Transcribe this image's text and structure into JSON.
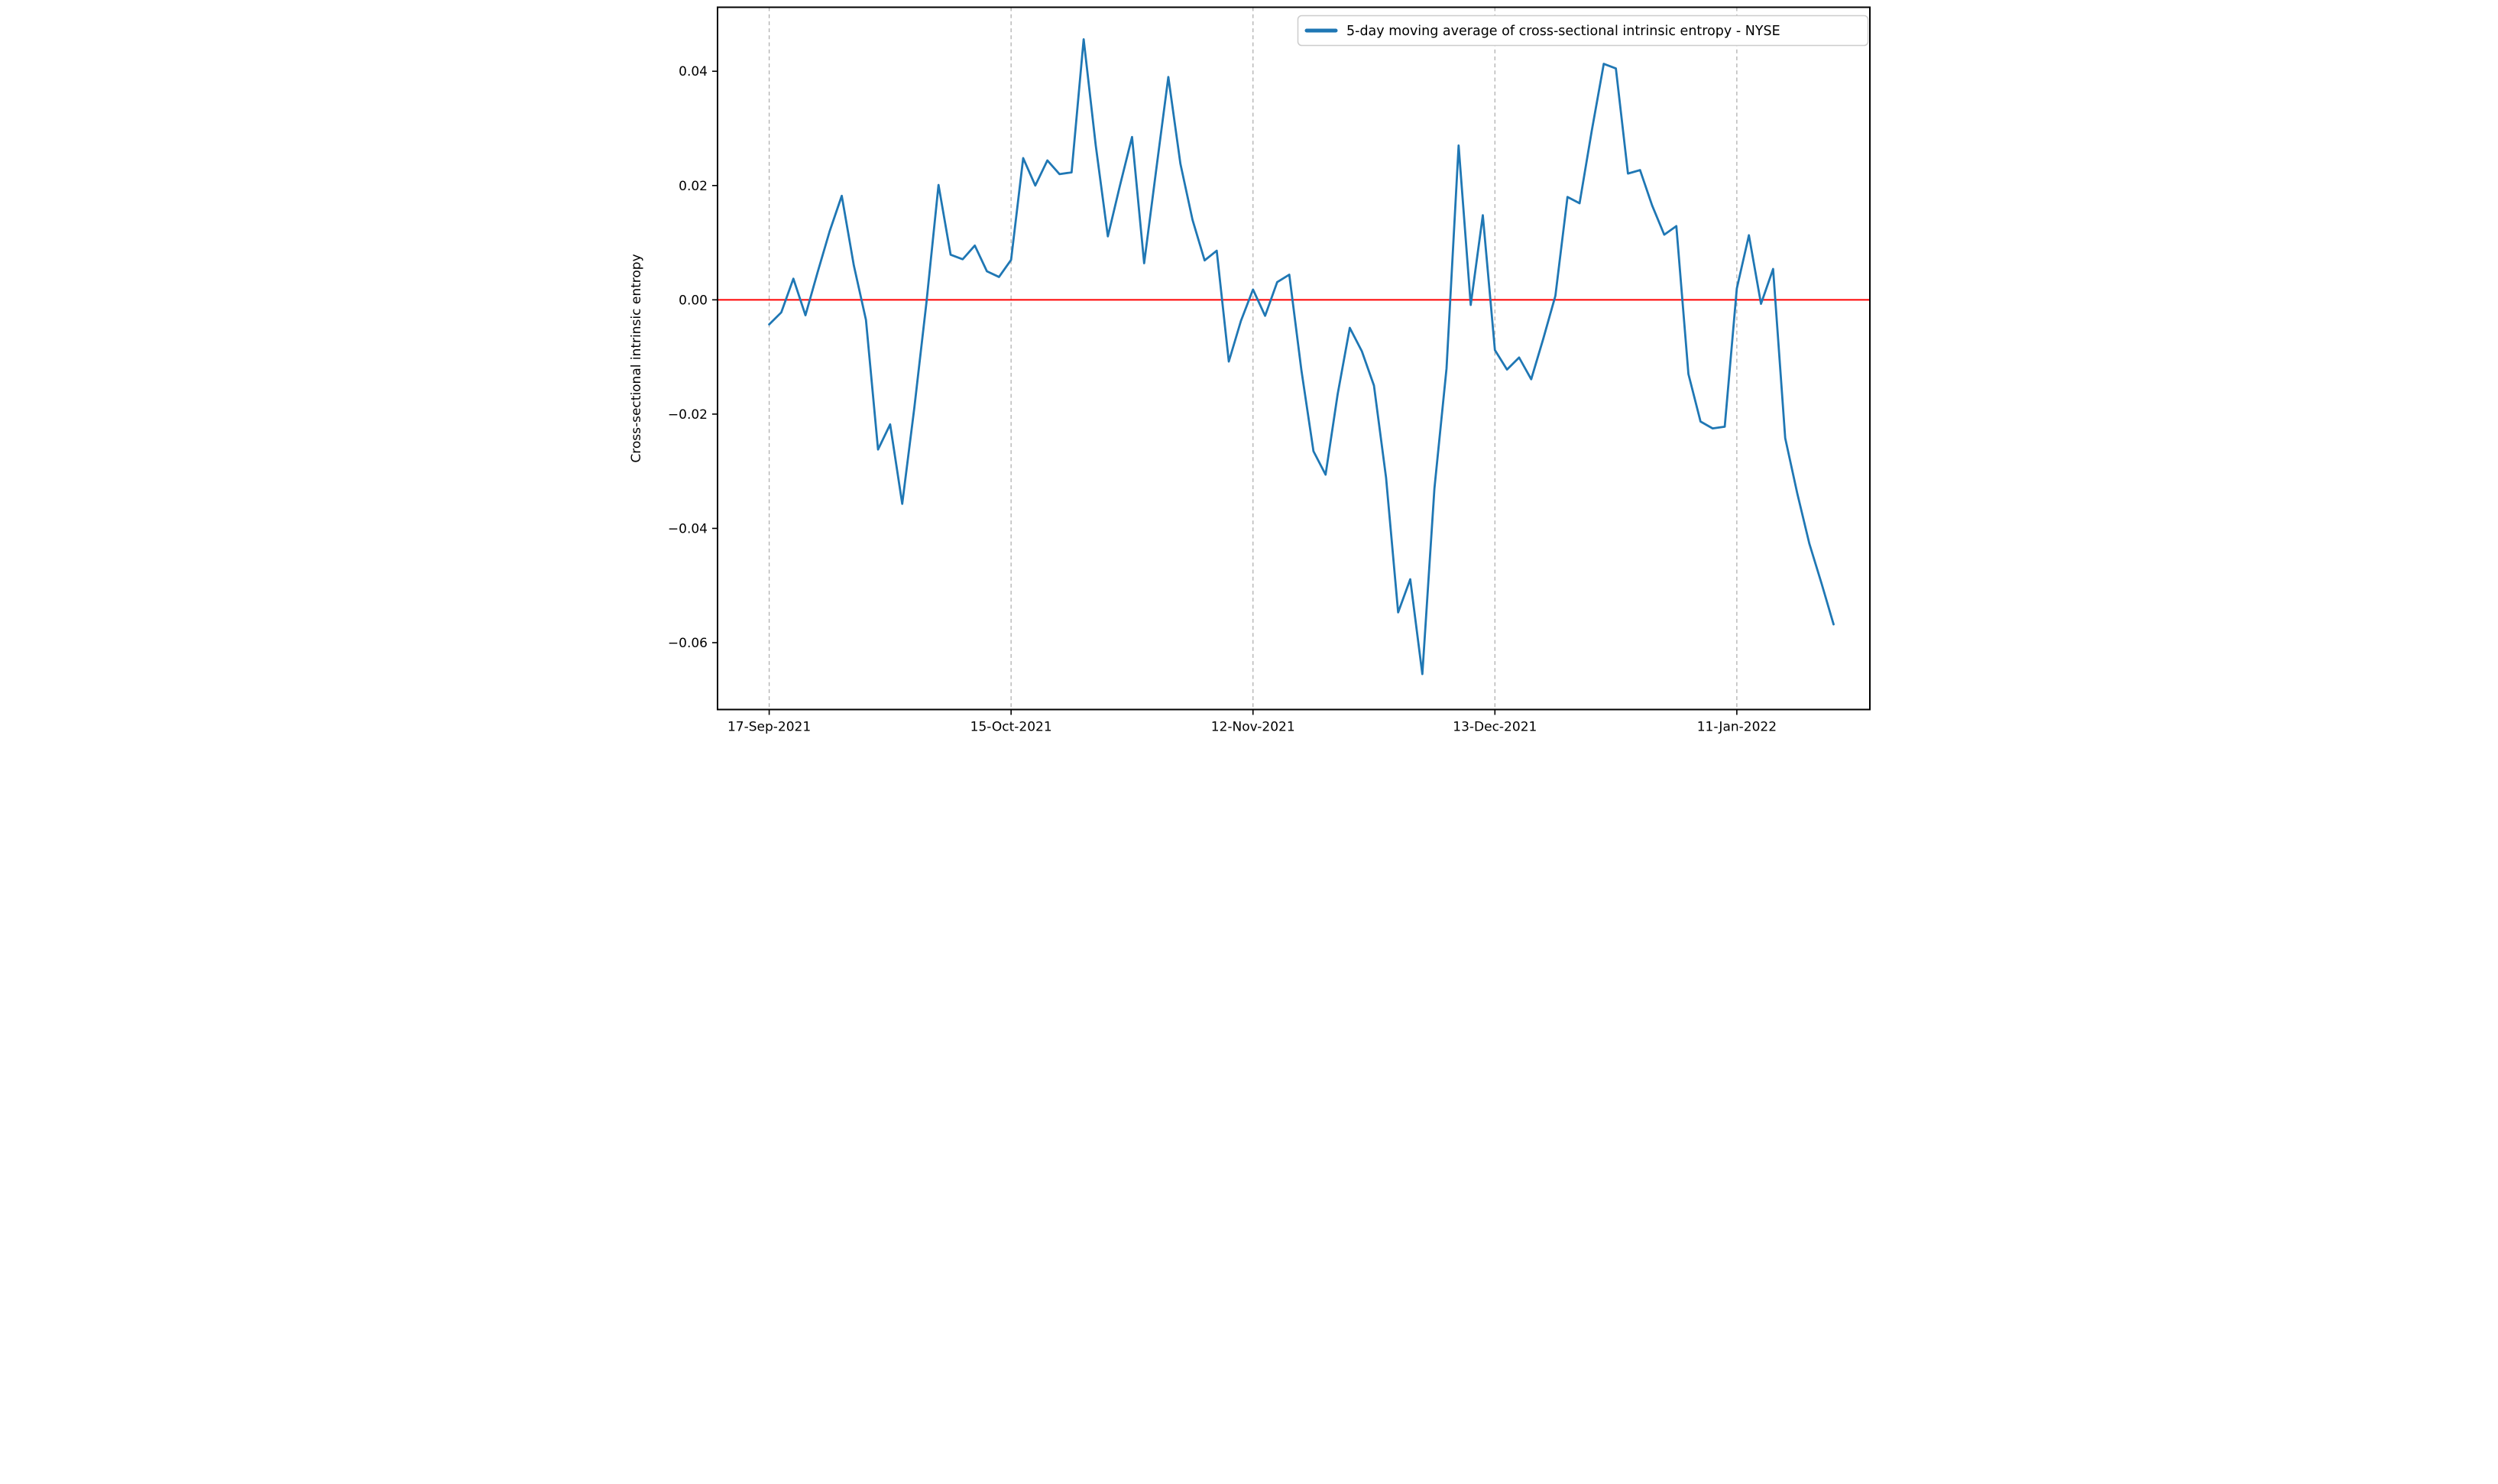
{
  "chart_data": {
    "type": "line",
    "title": "",
    "xlabel": "",
    "ylabel": "Cross-sectional intrinsic entropy",
    "legend": [
      {
        "label": "5-day moving average of cross-sectional intrinsic entropy - NYSE",
        "color": "#1f77b4"
      }
    ],
    "legend_position": "top-right",
    "grid": "vertical-dashed",
    "colors": {
      "series": "#1f77b4",
      "zero_line": "#ff0000",
      "gridline": "#b0b0b0",
      "axis": "#000000",
      "legend_border": "#cccccc",
      "background": "#ffffff"
    },
    "ylim": [
      -0.0717,
      0.0512
    ],
    "xlim_day_index": [
      -4.27,
      91.0
    ],
    "y_ticks": [
      {
        "value": 0.04,
        "label": "0.04"
      },
      {
        "value": 0.02,
        "label": "0.02"
      },
      {
        "value": 0.0,
        "label": "0.00"
      },
      {
        "value": -0.02,
        "label": "−0.02"
      },
      {
        "value": -0.04,
        "label": "−0.04"
      },
      {
        "value": -0.06,
        "label": "−0.06"
      }
    ],
    "x_ticks": [
      {
        "index": 0,
        "label": "17-Sep-2021"
      },
      {
        "index": 20,
        "label": "15-Oct-2021"
      },
      {
        "index": 40,
        "label": "12-Nov-2021"
      },
      {
        "index": 60,
        "label": "13-Dec-2021"
      },
      {
        "index": 80,
        "label": "11-Jan-2022"
      }
    ],
    "zero_line_value": 0.0,
    "x": [
      "17-Sep-2021",
      "20-Sep-2021",
      "21-Sep-2021",
      "22-Sep-2021",
      "23-Sep-2021",
      "24-Sep-2021",
      "27-Sep-2021",
      "28-Sep-2021",
      "29-Sep-2021",
      "30-Sep-2021",
      "01-Oct-2021",
      "04-Oct-2021",
      "05-Oct-2021",
      "06-Oct-2021",
      "07-Oct-2021",
      "08-Oct-2021",
      "11-Oct-2021",
      "12-Oct-2021",
      "13-Oct-2021",
      "14-Oct-2021",
      "15-Oct-2021",
      "18-Oct-2021",
      "19-Oct-2021",
      "20-Oct-2021",
      "21-Oct-2021",
      "22-Oct-2021",
      "25-Oct-2021",
      "26-Oct-2021",
      "27-Oct-2021",
      "28-Oct-2021",
      "29-Oct-2021",
      "01-Nov-2021",
      "02-Nov-2021",
      "03-Nov-2021",
      "04-Nov-2021",
      "05-Nov-2021",
      "08-Nov-2021",
      "09-Nov-2021",
      "10-Nov-2021",
      "11-Nov-2021",
      "12-Nov-2021",
      "15-Nov-2021",
      "16-Nov-2021",
      "17-Nov-2021",
      "18-Nov-2021",
      "19-Nov-2021",
      "22-Nov-2021",
      "23-Nov-2021",
      "24-Nov-2021",
      "26-Nov-2021",
      "29-Nov-2021",
      "30-Nov-2021",
      "01-Dec-2021",
      "02-Dec-2021",
      "03-Dec-2021",
      "06-Dec-2021",
      "07-Dec-2021",
      "08-Dec-2021",
      "09-Dec-2021",
      "10-Dec-2021",
      "13-Dec-2021",
      "14-Dec-2021",
      "15-Dec-2021",
      "16-Dec-2021",
      "17-Dec-2021",
      "20-Dec-2021",
      "21-Dec-2021",
      "22-Dec-2021",
      "23-Dec-2021",
      "27-Dec-2021",
      "28-Dec-2021",
      "29-Dec-2021",
      "30-Dec-2021",
      "31-Dec-2021",
      "03-Jan-2022",
      "04-Jan-2022",
      "05-Jan-2022",
      "06-Jan-2022",
      "07-Jan-2022",
      "10-Jan-2022",
      "11-Jan-2022",
      "12-Jan-2022",
      "13-Jan-2022",
      "14-Jan-2022",
      "18-Jan-2022",
      "19-Jan-2022",
      "20-Jan-2022",
      "21-Jan-2022",
      "24-Jan-2022"
    ],
    "series": [
      {
        "name": "5-day moving average of cross-sectional intrinsic entropy - NYSE",
        "values": [
          -0.0043,
          -0.0022,
          0.0037,
          -0.0027,
          0.0048,
          0.012,
          0.0182,
          0.006,
          -0.0035,
          -0.0262,
          -0.0218,
          -0.0357,
          -0.0189,
          -0.0005,
          0.0201,
          0.0079,
          0.0071,
          0.0095,
          0.005,
          0.004,
          0.007,
          0.0248,
          0.02,
          0.0244,
          0.022,
          0.0223,
          0.0456,
          0.027,
          0.0111,
          0.02,
          0.0285,
          0.0064,
          0.0228,
          0.039,
          0.0238,
          0.014,
          0.0069,
          0.0086,
          -0.0108,
          -0.0037,
          0.0018,
          -0.0028,
          0.0031,
          0.0044,
          -0.0123,
          -0.0265,
          -0.0306,
          -0.0165,
          -0.0049,
          -0.009,
          -0.015,
          -0.0311,
          -0.0547,
          -0.0489,
          -0.0655,
          -0.033,
          -0.012,
          0.027,
          -0.0009,
          0.0148,
          -0.0088,
          -0.0122,
          -0.0101,
          -0.0139,
          -0.0068,
          0.0007,
          0.018,
          0.0169,
          0.0295,
          0.0413,
          0.0405,
          0.0221,
          0.0227,
          0.0165,
          0.0114,
          0.0129,
          -0.013,
          -0.0213,
          -0.0225,
          -0.0222,
          0.002,
          0.0113,
          -0.0007,
          0.0054,
          -0.0242,
          -0.0339,
          -0.0427,
          -0.0496,
          -0.0568
        ]
      }
    ]
  }
}
